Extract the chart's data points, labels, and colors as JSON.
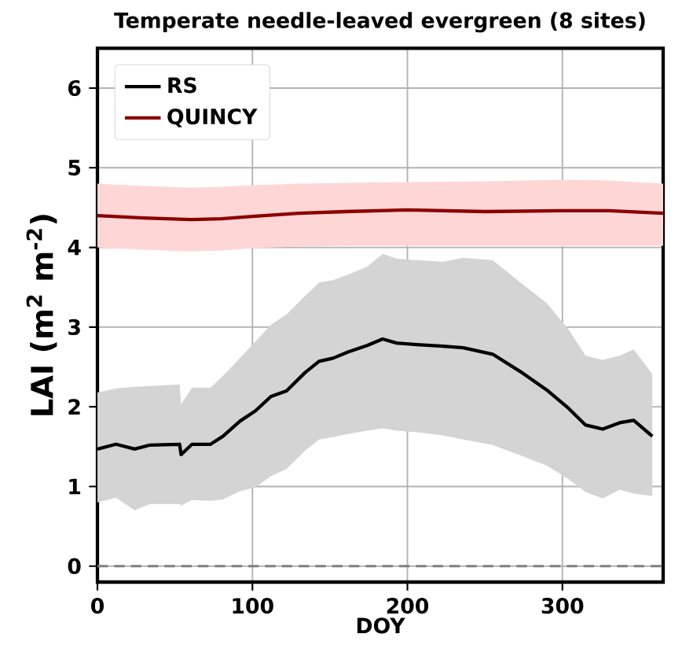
{
  "chart_data": {
    "type": "line",
    "title": "Temperate needle-leaved evergreen (8 sites)",
    "xlabel": "DOY",
    "ylabel": "LAI (m$^{2}$ m$^{-2}$)",
    "xlim": [
      0,
      365
    ],
    "ylim": [
      -0.2,
      6.5
    ],
    "xticks": [
      0,
      100,
      200,
      300
    ],
    "yticks": [
      0,
      1,
      2,
      3,
      4,
      5,
      6
    ],
    "grid": true,
    "legend": "top left",
    "marker": "none",
    "line_style": "solid",
    "ref_lines": [
      {
        "axis": "y",
        "value": 0,
        "color": "#808080",
        "line_style": "dashed"
      }
    ],
    "series": [
      {
        "name": "RS",
        "color": "#000000",
        "x": [
          0,
          12,
          24,
          34,
          53,
          54,
          61,
          73,
          81,
          92,
          102,
          112,
          122,
          134,
          143,
          152,
          162,
          174,
          184,
          193,
          206,
          223,
          236,
          255,
          273,
          290,
          304,
          315,
          326,
          337,
          346,
          358
        ],
        "values": [
          1.47,
          1.53,
          1.47,
          1.52,
          1.53,
          1.4,
          1.53,
          1.53,
          1.63,
          1.82,
          1.95,
          2.13,
          2.2,
          2.43,
          2.57,
          2.61,
          2.69,
          2.77,
          2.85,
          2.8,
          2.78,
          2.76,
          2.74,
          2.66,
          2.44,
          2.21,
          1.98,
          1.77,
          1.72,
          1.8,
          1.83,
          1.63
        ],
        "upper": [
          2.18,
          2.23,
          2.25,
          2.26,
          2.28,
          2.03,
          2.24,
          2.24,
          2.39,
          2.61,
          2.82,
          3.03,
          3.16,
          3.39,
          3.56,
          3.59,
          3.66,
          3.76,
          3.92,
          3.86,
          3.84,
          3.82,
          3.87,
          3.84,
          3.56,
          3.3,
          2.97,
          2.64,
          2.59,
          2.64,
          2.72,
          2.41
        ],
        "lower": [
          0.8,
          0.86,
          0.7,
          0.78,
          0.78,
          0.76,
          0.83,
          0.82,
          0.84,
          0.94,
          0.99,
          1.13,
          1.22,
          1.45,
          1.59,
          1.62,
          1.66,
          1.7,
          1.73,
          1.7,
          1.68,
          1.64,
          1.59,
          1.52,
          1.39,
          1.26,
          1.09,
          0.93,
          0.85,
          0.96,
          0.91,
          0.88
        ]
      },
      {
        "name": "QUINCY",
        "color": "#8b0000",
        "x": [
          0,
          30,
          60,
          80,
          100,
          130,
          160,
          200,
          250,
          300,
          330,
          365
        ],
        "values": [
          4.4,
          4.37,
          4.35,
          4.36,
          4.39,
          4.43,
          4.45,
          4.47,
          4.45,
          4.46,
          4.46,
          4.43
        ],
        "upper": [
          4.8,
          4.77,
          4.75,
          4.76,
          4.78,
          4.8,
          4.81,
          4.82,
          4.83,
          4.85,
          4.84,
          4.8
        ],
        "lower": [
          4.0,
          3.97,
          3.95,
          3.96,
          3.99,
          4.01,
          4.02,
          4.02,
          4.02,
          4.02,
          4.02,
          4.02
        ]
      }
    ]
  }
}
